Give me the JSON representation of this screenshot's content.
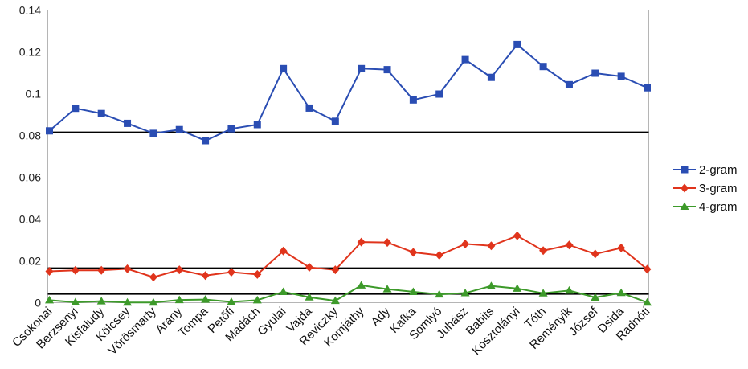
{
  "chart_data": {
    "type": "line",
    "title": "",
    "xlabel": "",
    "ylabel": "",
    "ylim": [
      0,
      0.14
    ],
    "yticks": [
      0,
      0.02,
      0.04,
      0.06,
      0.08,
      0.1,
      0.12,
      0.14
    ],
    "ytick_labels": [
      "0",
      "0.02",
      "0.04",
      "0.06",
      "0.08",
      "0.1",
      "0.12",
      "0.14"
    ],
    "grid": false,
    "legend_position": "right",
    "categories": [
      "Csokonai",
      "Berzsenyi",
      "Kisfaludy",
      "Kölcsey",
      "Vörösmarty",
      "Arany",
      "Tompa",
      "Petőfi",
      "Madách",
      "Gyulai",
      "Vajda",
      "Reviczky",
      "Komjáthy",
      "Ady",
      "Kafka",
      "Somlyó",
      "Juhász",
      "Babits",
      "Kosztolányi",
      "Tóth",
      "Reményik",
      "József",
      "Dsida",
      "Radnóti"
    ],
    "series": [
      {
        "name": "2-gram",
        "color": "#2a4db3",
        "marker": "square",
        "values": [
          0.0822,
          0.093,
          0.0905,
          0.0858,
          0.081,
          0.0828,
          0.0775,
          0.0832,
          0.0852,
          0.112,
          0.0931,
          0.0868,
          0.112,
          0.1115,
          0.097,
          0.0998,
          0.1163,
          0.1078,
          0.1235,
          0.113,
          0.1043,
          0.1098,
          0.1083,
          0.1028
        ]
      },
      {
        "name": "3-gram",
        "color": "#e0341c",
        "marker": "diamond",
        "values": [
          0.015,
          0.0155,
          0.0155,
          0.0162,
          0.0122,
          0.0157,
          0.013,
          0.0146,
          0.0135,
          0.0247,
          0.0169,
          0.0157,
          0.029,
          0.0288,
          0.0241,
          0.0227,
          0.0281,
          0.0272,
          0.032,
          0.0249,
          0.0276,
          0.0233,
          0.0262,
          0.016
        ]
      },
      {
        "name": "4-gram",
        "color": "#3d9a2a",
        "marker": "triangle",
        "values": [
          0.0012,
          0.0002,
          0.0007,
          0.0001,
          0.0001,
          0.0013,
          0.0015,
          0.0004,
          0.0012,
          0.0052,
          0.0026,
          0.0009,
          0.0083,
          0.0065,
          0.0052,
          0.004,
          0.0046,
          0.008,
          0.0068,
          0.0045,
          0.0058,
          0.0025,
          0.0047,
          0.0001
        ]
      }
    ],
    "reference_lines": [
      0.0815,
      0.0165,
      0.0042
    ],
    "reference_line_color": "#000000"
  }
}
